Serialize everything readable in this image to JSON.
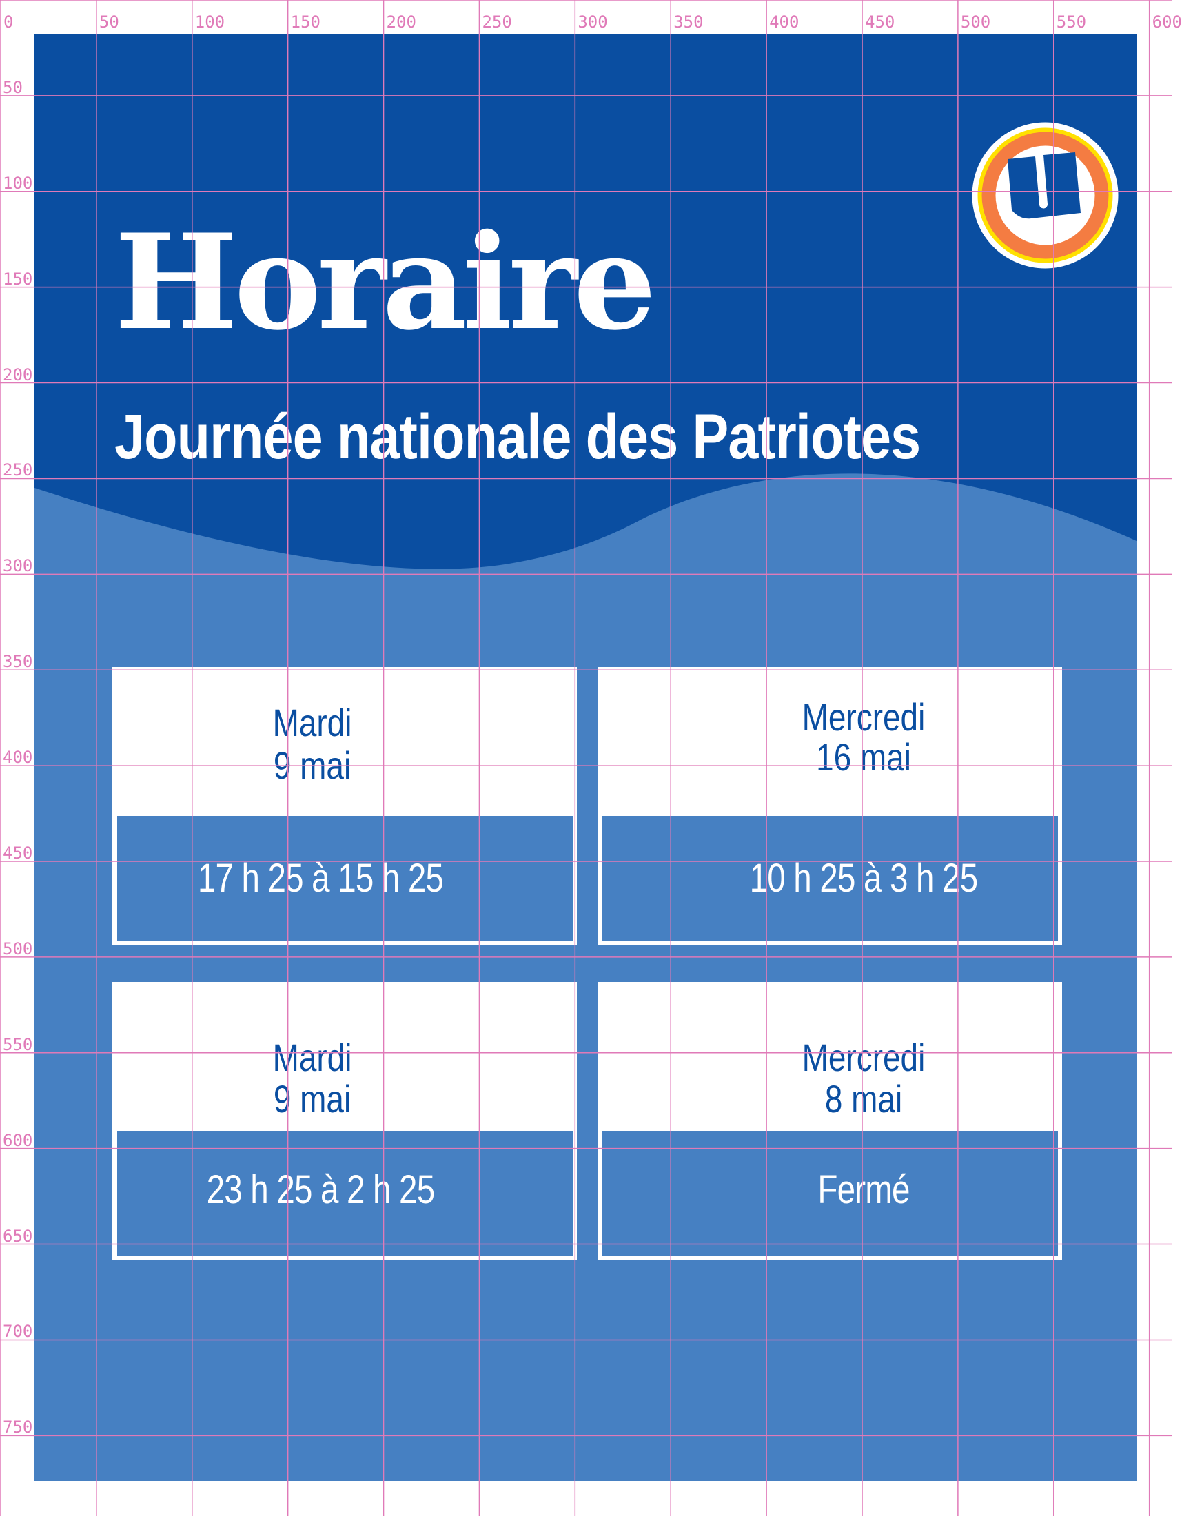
{
  "header": {
    "title": "Horaire",
    "subtitle": "Journée nationale des Patriotes"
  },
  "logo": {
    "name": "u-logo",
    "colors": {
      "ring_outer": "#FFE000",
      "ring": "#F47C42",
      "letter": "#0A4EA1"
    }
  },
  "colors": {
    "dark_blue": "#0A4EA1",
    "light_blue": "#4680C2",
    "grid": "#E07AB8"
  },
  "schedule": [
    {
      "day": "Mardi",
      "date": "9 mai",
      "hours": "17 h 25 à 15 h 25"
    },
    {
      "day": "Mercredi",
      "date": "16 mai",
      "hours": "10 h 25 à 3 h 25"
    },
    {
      "day": "Mardi",
      "date": "9 mai",
      "hours": "23 h 25 à 2 h 25"
    },
    {
      "day": "Mercredi",
      "date": "8 mai",
      "hours": "Fermé"
    }
  ],
  "grid": {
    "x_labels": [
      "0",
      "50",
      "100",
      "150",
      "200",
      "250",
      "300",
      "350",
      "400",
      "450",
      "500",
      "550",
      "600"
    ],
    "y_labels": [
      "50",
      "100",
      "150",
      "200",
      "250",
      "300",
      "350",
      "400",
      "450",
      "500",
      "550",
      "600",
      "650",
      "700",
      "750"
    ]
  }
}
